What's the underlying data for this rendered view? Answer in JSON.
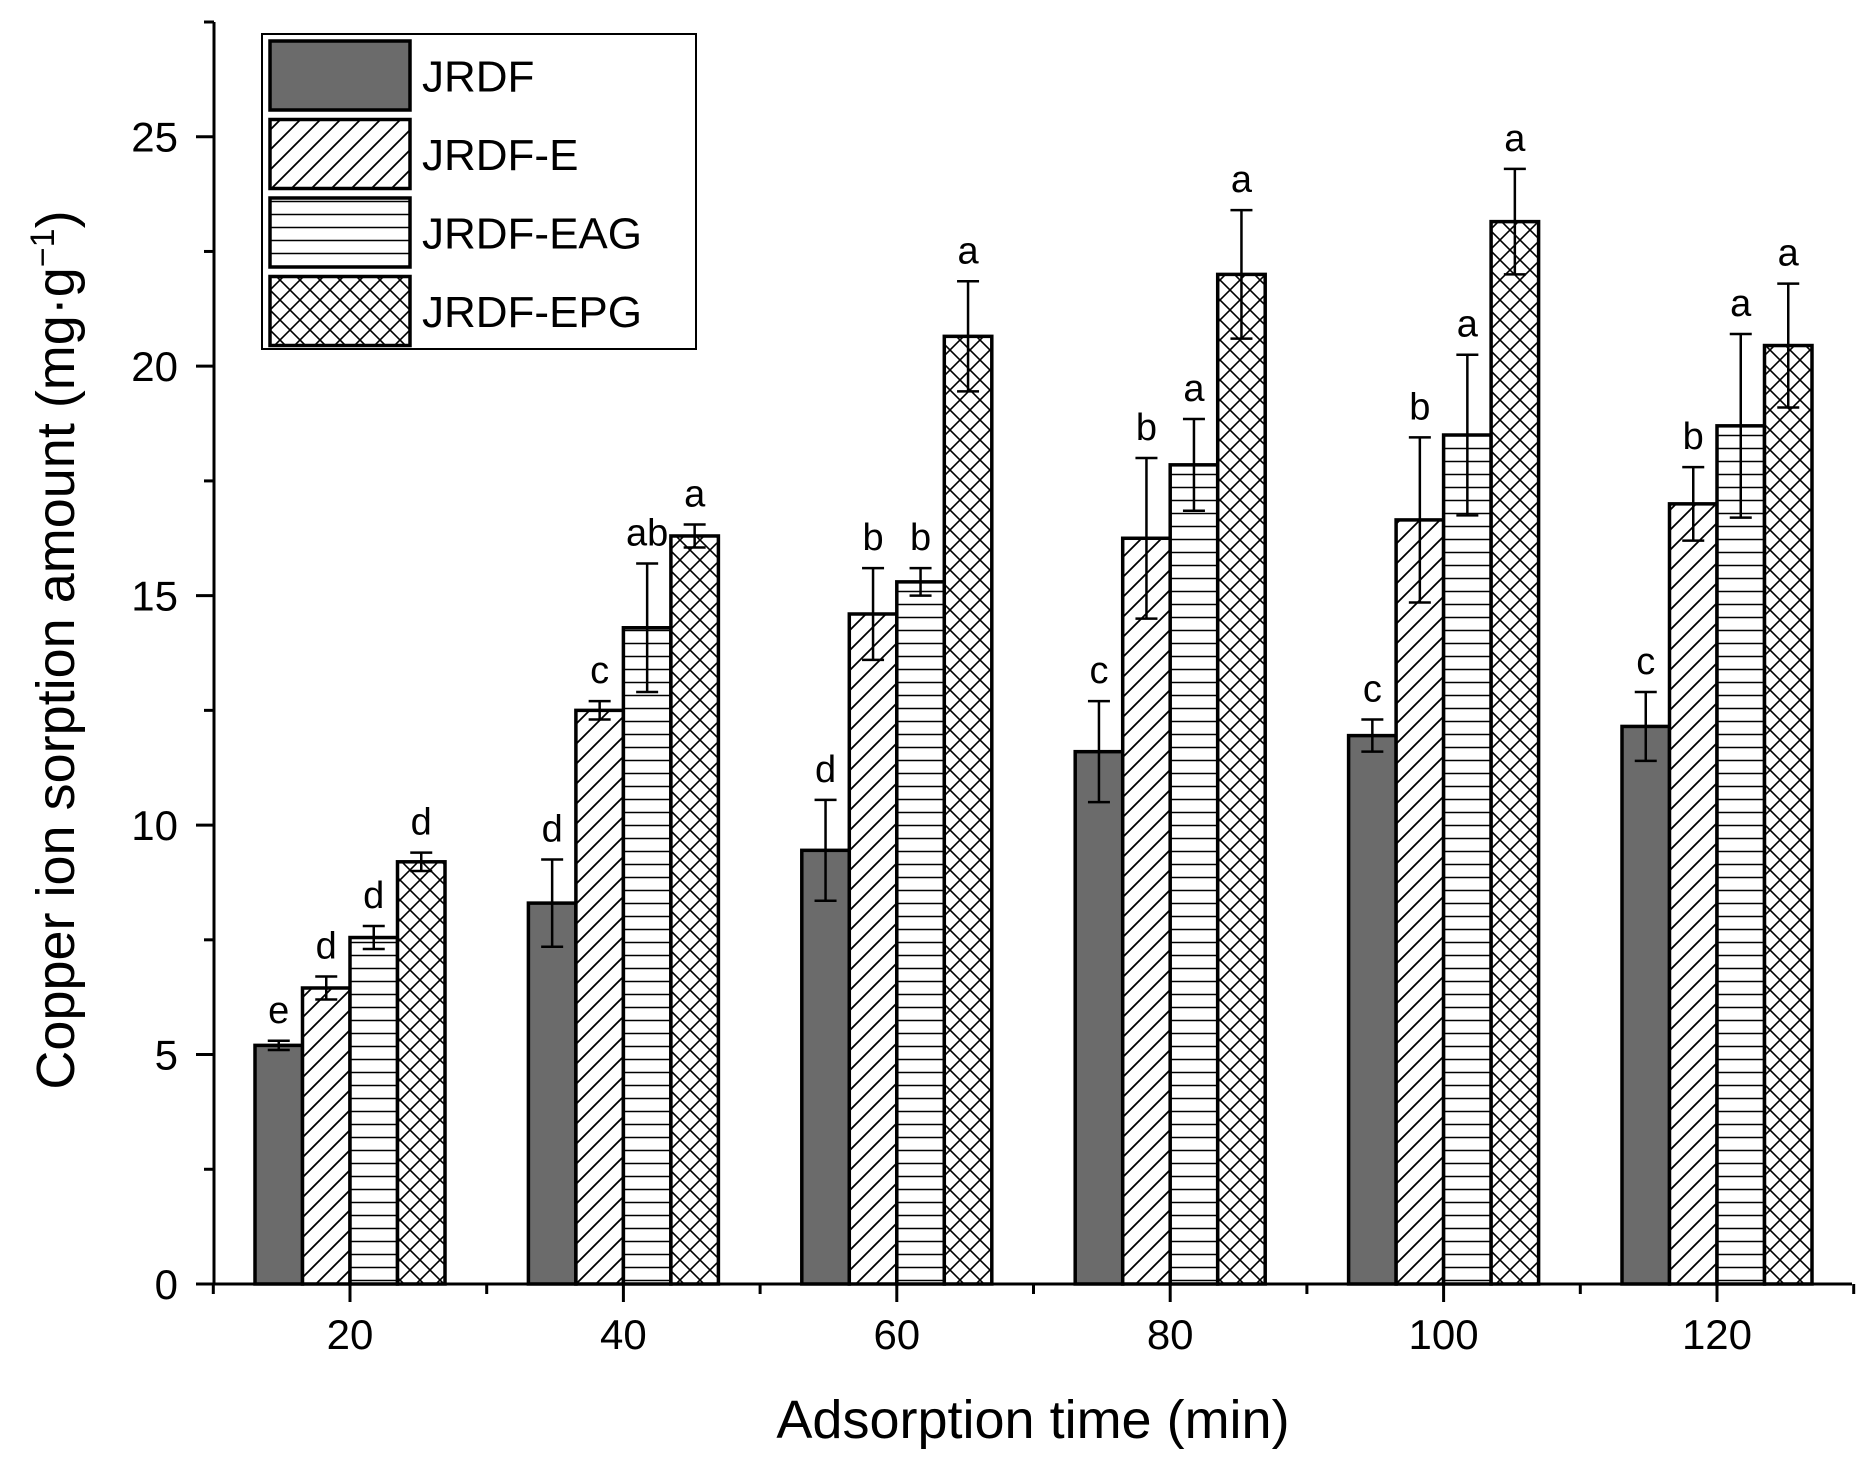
{
  "chart_data": {
    "type": "bar",
    "title": "",
    "xlabel": "Adsorption time (min)",
    "ylabel": "Copper ion sorption amount (mg·g⁻¹)",
    "ylabel_parts": {
      "main": "Copper ion sorption amount (mg·g",
      "sup": "−1",
      "close": ")"
    },
    "ylim": [
      0,
      27.5
    ],
    "yticks": [
      0,
      5,
      10,
      15,
      20,
      25
    ],
    "ytick_labels": [
      "0",
      "5",
      "10",
      "15",
      "20",
      "25"
    ],
    "y_minor_step": 2.5,
    "categories": [
      "20",
      "40",
      "60",
      "80",
      "100",
      "120"
    ],
    "legend_position": "top-left",
    "series": [
      {
        "name": "JRDF",
        "pattern": "solid-gray",
        "values": [
          5.2,
          8.3,
          9.45,
          11.6,
          11.95,
          12.15
        ],
        "errors": [
          0.1,
          0.95,
          1.1,
          1.1,
          0.35,
          0.75
        ],
        "letters": [
          "e",
          "d",
          "d",
          "c",
          "c",
          "c"
        ]
      },
      {
        "name": "JRDF-E",
        "pattern": "diagonal",
        "values": [
          6.45,
          12.5,
          14.6,
          16.25,
          16.65,
          17.0
        ],
        "errors": [
          0.25,
          0.2,
          1.0,
          1.75,
          1.8,
          0.8
        ],
        "letters": [
          "d",
          "c",
          "b",
          "b",
          "b",
          "b"
        ]
      },
      {
        "name": "JRDF-EAG",
        "pattern": "horizontal",
        "values": [
          7.55,
          14.3,
          15.3,
          17.85,
          18.5,
          18.7
        ],
        "errors": [
          0.25,
          1.4,
          0.3,
          1.0,
          1.75,
          2.0
        ],
        "letters": [
          "d",
          "ab",
          "b",
          "a",
          "a",
          "a"
        ]
      },
      {
        "name": "JRDF-EPG",
        "pattern": "crosshatch",
        "values": [
          9.2,
          16.3,
          20.65,
          22.0,
          23.15,
          20.45
        ],
        "errors": [
          0.2,
          0.25,
          1.2,
          1.4,
          1.15,
          1.35
        ],
        "letters": [
          "d",
          "a",
          "a",
          "a",
          "a",
          "a"
        ]
      }
    ]
  },
  "colors": {
    "jrdf_fill": "#6b6b6b",
    "axis": "#000000",
    "background": "#ffffff"
  }
}
